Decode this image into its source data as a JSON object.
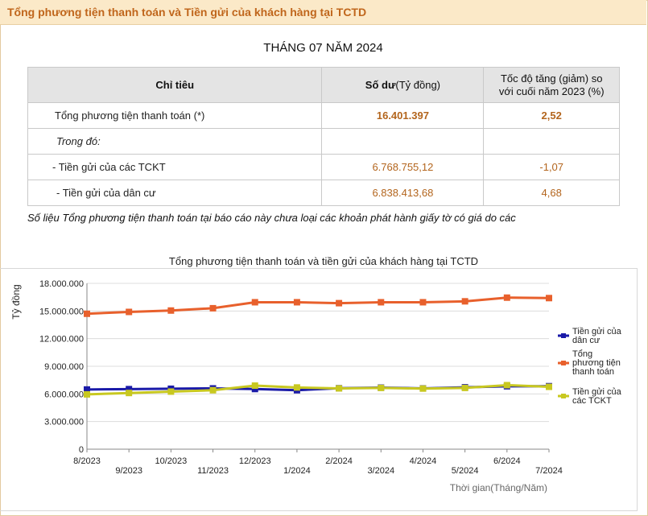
{
  "header": {
    "title": "Tổng phương tiện thanh toán và Tiền gửi của khách hàng tại TCTD"
  },
  "period": "THÁNG 07 NĂM 2024",
  "table": {
    "col1": "Chỉ tiêu",
    "col2_bold": "Số dư",
    "col2_unit": "(Tỷ đồng)",
    "col3": "Tốc độ tăng (giảm) so với cuối năm 2023 (%)",
    "rows": [
      {
        "label": "Tổng phương tiện thanh toán (*)",
        "balance": "16.401.397",
        "growth": "2,52"
      },
      {
        "label": "Trong đó:",
        "balance": "",
        "growth": ""
      },
      {
        "label": "- Tiền gửi của các TCKT",
        "balance": "6.768.755,12",
        "growth": "-1,07"
      },
      {
        "label": "- Tiền gửi của dân cư",
        "balance": "6.838.413,68",
        "growth": "4,68"
      }
    ]
  },
  "note": "Số liệu Tổng phương tiện thanh toán tại báo cáo này chưa loại các khoản phát hành giấy tờ có giá do các",
  "chart_data": {
    "type": "line",
    "title": "Tổng phương tiện thanh toán và tiền gửi của khách hàng tại TCTD",
    "xlabel": "Thời gian(Tháng/Năm)",
    "ylabel": "Tỷ đồng",
    "ylim": [
      0,
      18000000
    ],
    "yticks": [
      0,
      3000000,
      6000000,
      9000000,
      12000000,
      15000000,
      18000000
    ],
    "ytick_labels": [
      "0",
      "3.000.000",
      "6.000.000",
      "9.000.000",
      "12.000.000",
      "15.000.000",
      "18.000.000"
    ],
    "categories": [
      "8/2023",
      "9/2023",
      "10/2023",
      "11/2023",
      "12/2023",
      "1/2024",
      "2/2024",
      "3/2024",
      "4/2024",
      "5/2024",
      "6/2024",
      "7/2024"
    ],
    "series": [
      {
        "name": "Tiền gửi của dân cư",
        "color": "#1a1aa8",
        "values": [
          6480000,
          6520000,
          6560000,
          6600000,
          6530000,
          6400000,
          6620000,
          6680000,
          6600000,
          6720000,
          6830000,
          6838414
        ]
      },
      {
        "name": "Tổng phương tiện thanh toán",
        "color": "#e8602c",
        "values": [
          14700000,
          14900000,
          15050000,
          15300000,
          15950000,
          15950000,
          15850000,
          15950000,
          15950000,
          16050000,
          16450000,
          16401397
        ]
      },
      {
        "name": "Tiền gửi của các TCKT",
        "color": "#c8c820",
        "values": [
          5950000,
          6100000,
          6250000,
          6400000,
          6900000,
          6700000,
          6600000,
          6650000,
          6580000,
          6650000,
          6950000,
          6768755
        ]
      }
    ],
    "legend_position": "right"
  }
}
